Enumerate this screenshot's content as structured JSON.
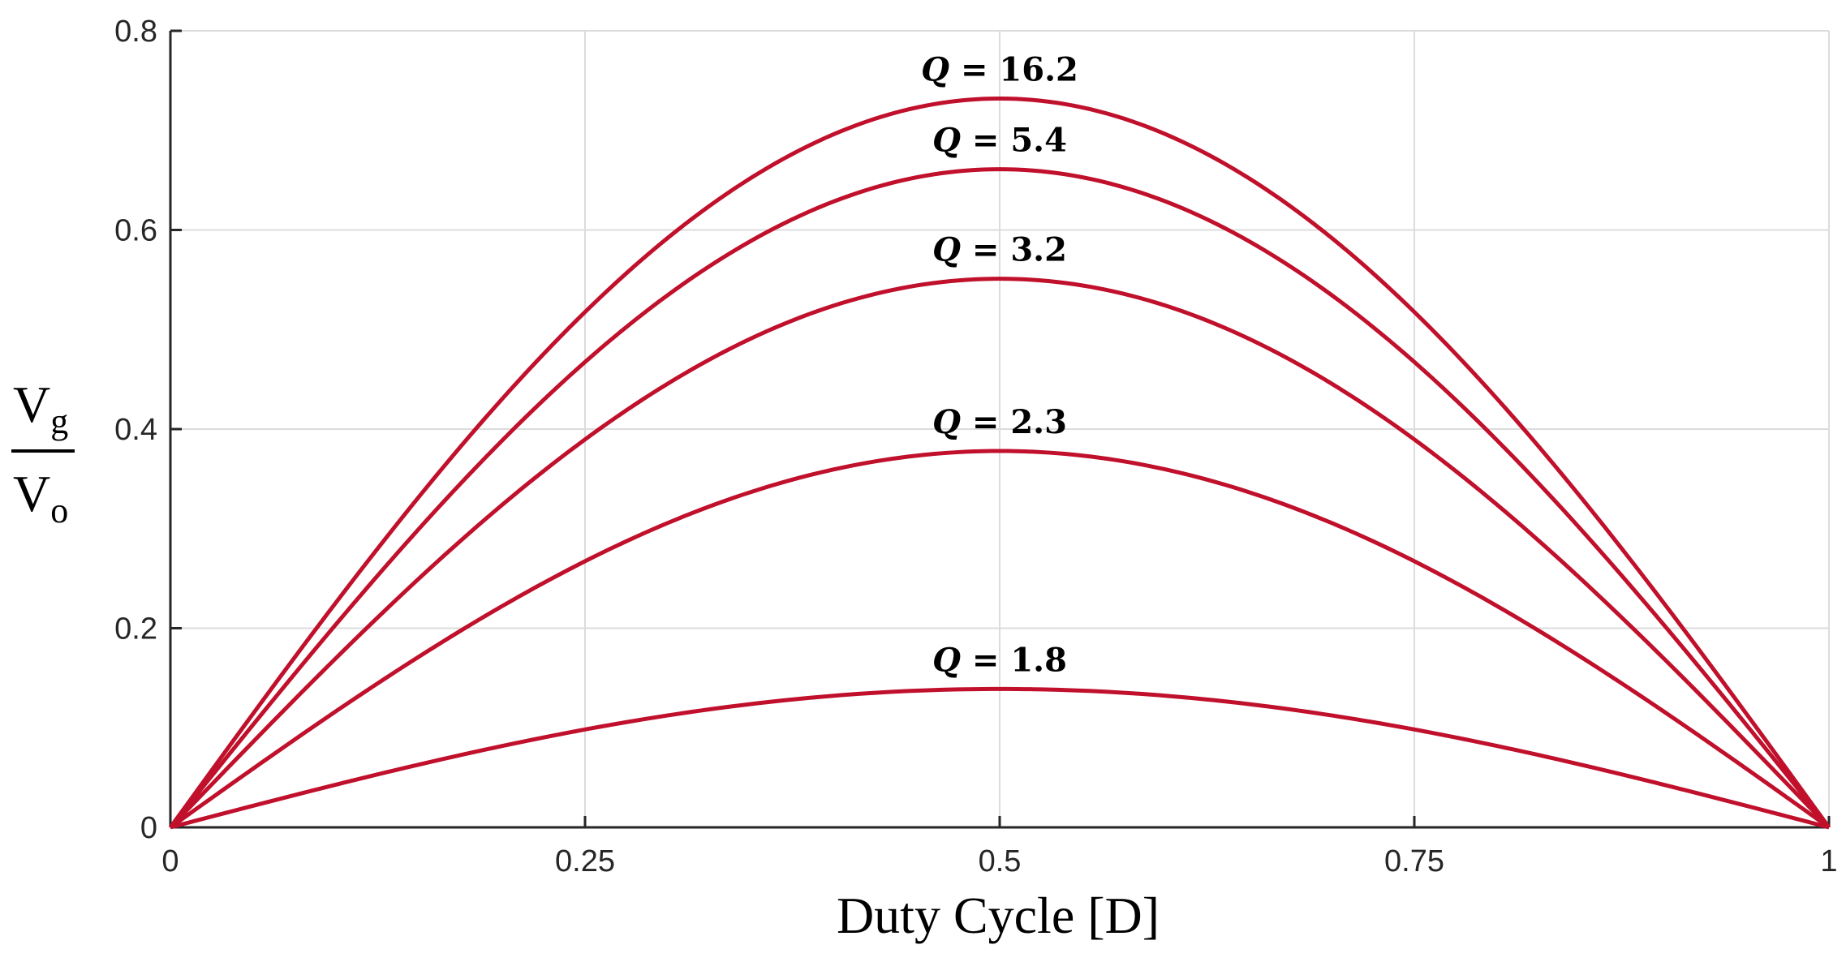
{
  "chart_data": {
    "type": "line",
    "title": "",
    "xlabel": "Duty Cycle [D]",
    "ylabel": {
      "numerator": "V",
      "numerator_sub": "g",
      "denominator": "V",
      "denominator_sub": "o"
    },
    "xlim": [
      0,
      1
    ],
    "ylim": [
      0,
      0.8
    ],
    "xticks": [
      0,
      0.25,
      0.5,
      0.75,
      1
    ],
    "xtick_labels": [
      "0",
      "0.25",
      "0.5",
      "0.75",
      "1"
    ],
    "yticks": [
      0,
      0.2,
      0.4,
      0.6,
      0.8
    ],
    "ytick_labels": [
      "0",
      "0.2",
      "0.4",
      "0.6",
      "0.8"
    ],
    "grid": true,
    "x": [
      0,
      0.0625,
      0.125,
      0.1875,
      0.25,
      0.3125,
      0.375,
      0.4375,
      0.5,
      0.5625,
      0.625,
      0.6875,
      0.75,
      0.8125,
      0.875,
      0.9375,
      1
    ],
    "series": [
      {
        "name": "Q = 16.2",
        "label_q": "Q",
        "label_value": "= 16.2",
        "peak": 0.732,
        "values": [
          0,
          0.14,
          0.28,
          0.406,
          0.518,
          0.61,
          0.677,
          0.718,
          0.732,
          0.718,
          0.677,
          0.61,
          0.518,
          0.406,
          0.28,
          0.14,
          0
        ]
      },
      {
        "name": "Q = 5.4",
        "label_q": "Q",
        "label_value": "= 5.4",
        "peak": 0.661,
        "values": [
          0,
          0.129,
          0.253,
          0.367,
          0.467,
          0.55,
          0.611,
          0.648,
          0.661,
          0.648,
          0.611,
          0.55,
          0.467,
          0.367,
          0.253,
          0.129,
          0
        ]
      },
      {
        "name": "Q = 3.2",
        "label_q": "Q",
        "label_value": "= 3.2",
        "peak": 0.551,
        "values": [
          0,
          0.107,
          0.211,
          0.306,
          0.39,
          0.458,
          0.509,
          0.54,
          0.551,
          0.54,
          0.509,
          0.458,
          0.39,
          0.306,
          0.211,
          0.107,
          0
        ]
      },
      {
        "name": "Q = 2.3",
        "label_q": "Q",
        "label_value": "= 2.3",
        "peak": 0.378,
        "values": [
          0,
          0.074,
          0.145,
          0.21,
          0.267,
          0.314,
          0.349,
          0.371,
          0.378,
          0.371,
          0.349,
          0.314,
          0.267,
          0.21,
          0.145,
          0.074,
          0
        ]
      },
      {
        "name": "Q = 1.8",
        "label_q": "Q",
        "label_value": "= 1.8",
        "peak": 0.139,
        "values": [
          0,
          0.027,
          0.053,
          0.077,
          0.098,
          0.116,
          0.128,
          0.136,
          0.139,
          0.136,
          0.128,
          0.116,
          0.098,
          0.077,
          0.053,
          0.027,
          0
        ]
      }
    ],
    "colors": {
      "line": "#c0102b",
      "grid": "#dcdcdc",
      "axis": "#262626"
    }
  }
}
